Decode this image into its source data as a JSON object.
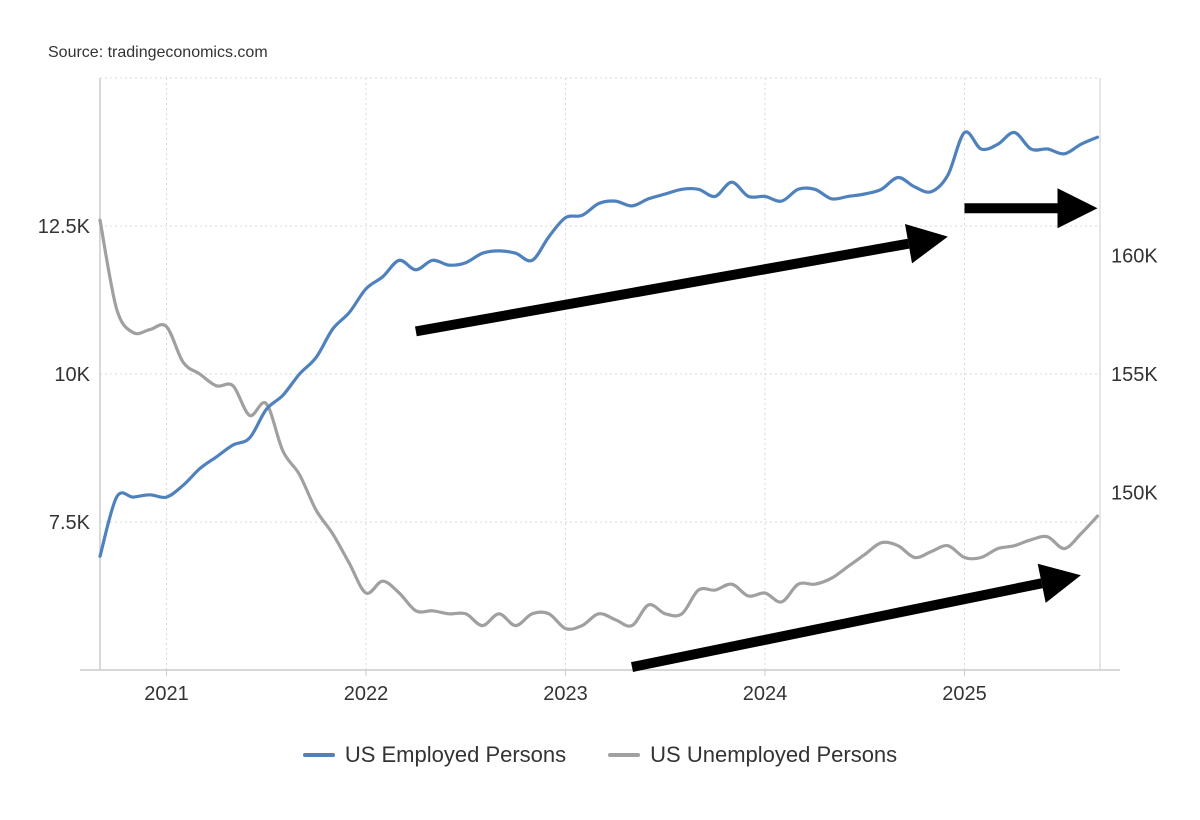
{
  "source_note": "Source: tradingeconomics.com",
  "colors": {
    "employed": "#4f81bd",
    "unemployed": "#a0a0a0",
    "grid": "#d9d9d9",
    "axis": "#cccccc",
    "arrows": "#000000"
  },
  "chart_data": {
    "type": "line",
    "title": "",
    "xlabel": "",
    "grid": true,
    "legend_position": "bottom",
    "x_tick_labels": [
      "2021",
      "2022",
      "2023",
      "2024",
      "2025"
    ],
    "left_axis": {
      "ylim": [
        5000,
        15000
      ],
      "tick_values": [
        7500,
        10000,
        12500
      ],
      "tick_labels": [
        "7.5K",
        "10K",
        "12.5K"
      ]
    },
    "right_axis": {
      "ylim": [
        142500,
        167500
      ],
      "tick_values": [
        150000,
        155000,
        160000
      ],
      "tick_labels": [
        "150K",
        "155K",
        "160K"
      ]
    },
    "series": [
      {
        "name": "US Employed Persons",
        "axis": "right",
        "color": "#4f81bd",
        "points": [
          [
            "2020-09",
            147300
          ],
          [
            "2020-10",
            149800
          ],
          [
            "2020-11",
            149800
          ],
          [
            "2020-12",
            149900
          ],
          [
            "2021-01",
            149800
          ],
          [
            "2021-02",
            150300
          ],
          [
            "2021-03",
            151000
          ],
          [
            "2021-04",
            151500
          ],
          [
            "2021-05",
            152000
          ],
          [
            "2021-06",
            152300
          ],
          [
            "2021-07",
            153500
          ],
          [
            "2021-08",
            154100
          ],
          [
            "2021-09",
            155000
          ],
          [
            "2021-10",
            155700
          ],
          [
            "2021-11",
            156900
          ],
          [
            "2021-12",
            157600
          ],
          [
            "2022-01",
            158600
          ],
          [
            "2022-02",
            159100
          ],
          [
            "2022-03",
            159800
          ],
          [
            "2022-04",
            159400
          ],
          [
            "2022-05",
            159800
          ],
          [
            "2022-06",
            159600
          ],
          [
            "2022-07",
            159700
          ],
          [
            "2022-08",
            160100
          ],
          [
            "2022-09",
            160200
          ],
          [
            "2022-10",
            160100
          ],
          [
            "2022-11",
            159800
          ],
          [
            "2022-12",
            160800
          ],
          [
            "2023-01",
            161600
          ],
          [
            "2023-02",
            161700
          ],
          [
            "2023-03",
            162200
          ],
          [
            "2023-04",
            162300
          ],
          [
            "2023-05",
            162100
          ],
          [
            "2023-06",
            162400
          ],
          [
            "2023-07",
            162600
          ],
          [
            "2023-08",
            162800
          ],
          [
            "2023-09",
            162800
          ],
          [
            "2023-10",
            162500
          ],
          [
            "2023-11",
            163100
          ],
          [
            "2023-12",
            162500
          ],
          [
            "2024-01",
            162500
          ],
          [
            "2024-02",
            162300
          ],
          [
            "2024-03",
            162800
          ],
          [
            "2024-04",
            162800
          ],
          [
            "2024-05",
            162400
          ],
          [
            "2024-06",
            162500
          ],
          [
            "2024-07",
            162600
          ],
          [
            "2024-08",
            162800
          ],
          [
            "2024-09",
            163300
          ],
          [
            "2024-10",
            162900
          ],
          [
            "2024-11",
            162700
          ],
          [
            "2024-12",
            163400
          ],
          [
            "2025-01",
            165200
          ],
          [
            "2025-02",
            164500
          ],
          [
            "2025-03",
            164700
          ],
          [
            "2025-04",
            165200
          ],
          [
            "2025-05",
            164500
          ],
          [
            "2025-06",
            164500
          ],
          [
            "2025-07",
            164300
          ],
          [
            "2025-08",
            164700
          ],
          [
            "2025-09",
            165000
          ]
        ]
      },
      {
        "name": "US Unemployed Persons",
        "axis": "left",
        "color": "#a0a0a0",
        "points": [
          [
            "2020-09",
            12600
          ],
          [
            "2020-10",
            11100
          ],
          [
            "2020-11",
            10700
          ],
          [
            "2020-12",
            10750
          ],
          [
            "2021-01",
            10800
          ],
          [
            "2021-02",
            10200
          ],
          [
            "2021-03",
            10000
          ],
          [
            "2021-04",
            9800
          ],
          [
            "2021-05",
            9800
          ],
          [
            "2021-06",
            9300
          ],
          [
            "2021-07",
            9500
          ],
          [
            "2021-08",
            8700
          ],
          [
            "2021-09",
            8300
          ],
          [
            "2021-10",
            7700
          ],
          [
            "2021-11",
            7300
          ],
          [
            "2021-12",
            6800
          ],
          [
            "2022-01",
            6300
          ],
          [
            "2022-02",
            6500
          ],
          [
            "2022-03",
            6300
          ],
          [
            "2022-04",
            6000
          ],
          [
            "2022-05",
            6000
          ],
          [
            "2022-06",
            5950
          ],
          [
            "2022-07",
            5950
          ],
          [
            "2022-08",
            5750
          ],
          [
            "2022-09",
            5950
          ],
          [
            "2022-10",
            5750
          ],
          [
            "2022-11",
            5950
          ],
          [
            "2022-12",
            5950
          ],
          [
            "2023-01",
            5700
          ],
          [
            "2023-02",
            5750
          ],
          [
            "2023-03",
            5950
          ],
          [
            "2023-04",
            5850
          ],
          [
            "2023-05",
            5750
          ],
          [
            "2023-06",
            6100
          ],
          [
            "2023-07",
            5950
          ],
          [
            "2023-08",
            5950
          ],
          [
            "2023-09",
            6350
          ],
          [
            "2023-10",
            6350
          ],
          [
            "2023-11",
            6450
          ],
          [
            "2023-12",
            6250
          ],
          [
            "2024-01",
            6300
          ],
          [
            "2024-02",
            6150
          ],
          [
            "2024-03",
            6450
          ],
          [
            "2024-04",
            6450
          ],
          [
            "2024-05",
            6550
          ],
          [
            "2024-06",
            6750
          ],
          [
            "2024-07",
            6950
          ],
          [
            "2024-08",
            7150
          ],
          [
            "2024-09",
            7100
          ],
          [
            "2024-10",
            6900
          ],
          [
            "2024-11",
            7000
          ],
          [
            "2024-12",
            7100
          ],
          [
            "2025-01",
            6900
          ],
          [
            "2025-02",
            6900
          ],
          [
            "2025-03",
            7050
          ],
          [
            "2025-04",
            7100
          ],
          [
            "2025-05",
            7200
          ],
          [
            "2025-06",
            7250
          ],
          [
            "2025-07",
            7050
          ],
          [
            "2025-08",
            7300
          ],
          [
            "2025-09",
            7600
          ]
        ]
      }
    ],
    "annotations": [
      {
        "type": "arrow",
        "series": "US Employed Persons",
        "from": [
          "2022-04",
          156800
        ],
        "to": [
          "2024-12",
          160800
        ]
      },
      {
        "type": "arrow",
        "series": "US Employed Persons",
        "from": [
          "2025-01",
          162000
        ],
        "to": [
          "2025-09",
          162000
        ]
      },
      {
        "type": "arrow",
        "series": "US Unemployed Persons",
        "from": [
          "2023-05",
          5050
        ],
        "to": [
          "2025-08",
          6600
        ]
      }
    ]
  }
}
